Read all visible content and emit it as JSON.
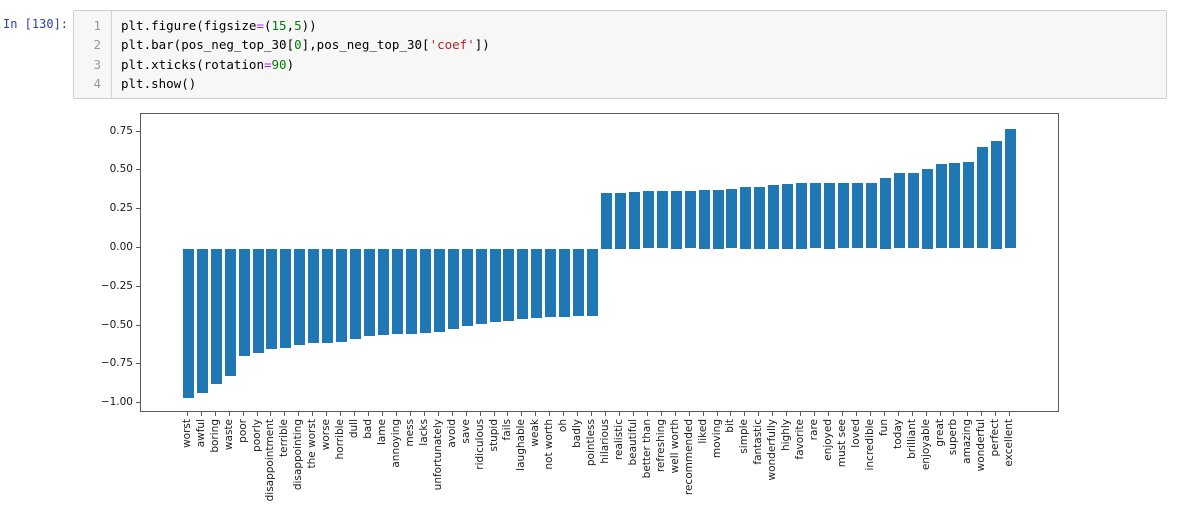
{
  "notebook": {
    "prompt": "In [130]:",
    "code_lines": [
      {
        "number": "1",
        "tokens": [
          {
            "t": "plt.figure(figsize",
            "c": "plain"
          },
          {
            "t": "=",
            "c": "op"
          },
          {
            "t": "(",
            "c": "plain"
          },
          {
            "t": "15",
            "c": "num"
          },
          {
            "t": ",",
            "c": "plain"
          },
          {
            "t": "5",
            "c": "num"
          },
          {
            "t": "))",
            "c": "plain"
          }
        ]
      },
      {
        "number": "2",
        "tokens": [
          {
            "t": "plt.bar(pos_neg_top_30[",
            "c": "plain"
          },
          {
            "t": "0",
            "c": "num"
          },
          {
            "t": "],pos_neg_top_30[",
            "c": "plain"
          },
          {
            "t": "'coef'",
            "c": "str"
          },
          {
            "t": "])",
            "c": "plain"
          }
        ]
      },
      {
        "number": "3",
        "tokens": [
          {
            "t": "plt.xticks(rotation",
            "c": "plain"
          },
          {
            "t": "=",
            "c": "op"
          },
          {
            "t": "90",
            "c": "num"
          },
          {
            "t": ")",
            "c": "plain"
          }
        ]
      },
      {
        "number": "4",
        "tokens": [
          {
            "t": "plt.show()",
            "c": "plain"
          }
        ]
      }
    ],
    "colors": {
      "prompt": "#303F9F",
      "number_token": "#008000",
      "operator_token": "#AA22FF",
      "string_token": "#BA2121",
      "line_number": "#999999",
      "cell_background": "#f7f7f7",
      "cell_border": "#cfcfcf"
    }
  },
  "chart_data": {
    "type": "bar",
    "title": "",
    "xlabel": "",
    "ylabel": "",
    "grid": false,
    "legend": null,
    "bar_color": "#1f77b4",
    "ylim": [
      -1.047,
      0.867
    ],
    "yticks": [
      0.75,
      0.5,
      0.25,
      0.0,
      -0.25,
      -0.5,
      -0.75,
      -1.0
    ],
    "ytick_labels": [
      "0.75",
      "0.50",
      "0.25",
      "0.00",
      "−0.25",
      "−0.50",
      "−0.75",
      "−1.00"
    ],
    "categories": [
      "worst",
      "awful",
      "boring",
      "waste",
      "poor",
      "poorly",
      "disappointment",
      "terrible",
      "disappointing",
      "the worst",
      "worse",
      "horrible",
      "dull",
      "bad",
      "lame",
      "annoying",
      "mess",
      "lacks",
      "unfortunately",
      "avoid",
      "save",
      "ridiculous",
      "stupid",
      "fails",
      "laughable",
      "weak",
      "not worth",
      "oh",
      "badly",
      "pointless",
      "hilarious",
      "realistic",
      "beautiful",
      "better than",
      "refreshing",
      "well worth",
      "recommended",
      "liked",
      "moving",
      "bit",
      "simple",
      "fantastic",
      "wonderfully",
      "highly",
      "favorite",
      "rare",
      "enjoyed",
      "must see",
      "loved",
      "incredible",
      "fun",
      "today",
      "brilliant",
      "enjoyable",
      "great",
      "superb",
      "amazing",
      "wonderful",
      "perfect",
      "excellent"
    ],
    "values": [
      -0.96,
      -0.93,
      -0.87,
      -0.82,
      -0.69,
      -0.67,
      -0.65,
      -0.64,
      -0.62,
      -0.61,
      -0.61,
      -0.6,
      -0.58,
      -0.565,
      -0.557,
      -0.553,
      -0.549,
      -0.543,
      -0.538,
      -0.52,
      -0.5,
      -0.487,
      -0.474,
      -0.469,
      -0.456,
      -0.448,
      -0.444,
      -0.44,
      -0.436,
      -0.433,
      0.36,
      0.36,
      0.362,
      0.368,
      0.37,
      0.371,
      0.372,
      0.377,
      0.378,
      0.386,
      0.398,
      0.4,
      0.409,
      0.416,
      0.42,
      0.421,
      0.422,
      0.423,
      0.424,
      0.425,
      0.458,
      0.484,
      0.488,
      0.516,
      0.542,
      0.55,
      0.558,
      0.657,
      0.693,
      0.773
    ]
  }
}
